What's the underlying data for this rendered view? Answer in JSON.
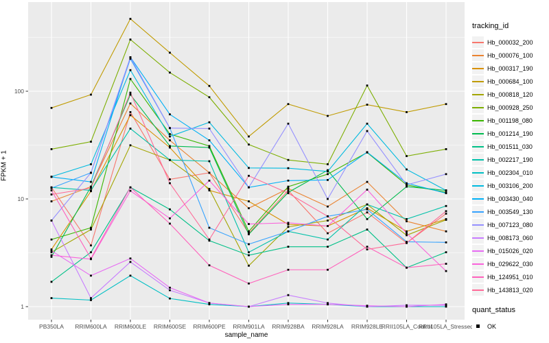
{
  "legend": {
    "tracking_title": "tracking_id",
    "quant_title": "quant_status",
    "quant_value": "OK"
  },
  "colors": {
    "panel_bg": "#EBEBEB",
    "grid_major": "#FFFFFF",
    "grid_minor": "#F7F7F7",
    "tick_mark": "#333333",
    "tick_text": "#4D4D4D",
    "point": "#000000",
    "legend_key_bg": "#F2F2F2"
  },
  "chart_data": {
    "type": "line",
    "title": "",
    "xlabel": "sample_name",
    "ylabel": "FPKM + 1",
    "y_scale": "log10",
    "ylim": [
      1,
      625
    ],
    "y_ticks": [
      1,
      10,
      100
    ],
    "y_minor_ticks": [
      3.162,
      31.62,
      316.2
    ],
    "grid": true,
    "legend_position": "right",
    "point_marker": "black-square",
    "categories": [
      "PB350LA",
      "RRIM600LA",
      "RRIM600LE",
      "RRIM600SE",
      "RRIM600PE",
      "RRIM901LA",
      "RRIM928BA",
      "RRIM928LA",
      "RRIM928LE",
      "RRII105LA_Control",
      "RRII105LA_Stressed"
    ],
    "series": [
      {
        "name": "Hb_000032_200",
        "color": "#F8766D",
        "values": [
          12.8,
          3.7,
          64,
          15.2,
          17.5,
          4.8,
          12.0,
          4.8,
          7.5,
          3.9,
          7.3
        ]
      },
      {
        "name": "Hb_000076_100",
        "color": "#EA8331",
        "values": [
          9.5,
          13.0,
          77,
          35,
          17.5,
          8.2,
          12.5,
          8.5,
          14.4,
          6.2,
          5.0
        ]
      },
      {
        "name": "Hb_000317_190",
        "color": "#D89000",
        "values": [
          3.4,
          11.8,
          60,
          30,
          12.0,
          9.5,
          5.8,
          5.6,
          8.2,
          5.0,
          6.5
        ]
      },
      {
        "name": "Hb_000684_100",
        "color": "#C09B00",
        "values": [
          70,
          93,
          470,
          228,
          112,
          38,
          76,
          59,
          75,
          64,
          76
        ]
      },
      {
        "name": "Hb_000818_120",
        "color": "#A3A500",
        "values": [
          3.2,
          5.2,
          31.5,
          23,
          12.4,
          2.4,
          5.5,
          6.3,
          8.9,
          4.6,
          6.4
        ]
      },
      {
        "name": "Hb_000928_250",
        "color": "#7CAE00",
        "values": [
          29,
          34,
          302,
          149,
          88,
          32,
          23,
          21,
          113,
          25,
          29
        ]
      },
      {
        "name": "Hb_001198_080",
        "color": "#39B600",
        "values": [
          4.2,
          5.4,
          130,
          40,
          31,
          5.0,
          13.0,
          17.0,
          27,
          13.5,
          11.5
        ]
      },
      {
        "name": "Hb_001214_190",
        "color": "#00BB4E",
        "values": [
          2.9,
          13.0,
          93,
          31,
          30,
          4.7,
          11.5,
          18.5,
          6.5,
          13.0,
          12.0
        ]
      },
      {
        "name": "Hb_001511_030",
        "color": "#00C087",
        "values": [
          1.7,
          3.2,
          12.8,
          8.0,
          4.1,
          3.0,
          3.6,
          3.6,
          5.2,
          2.3,
          3.2
        ]
      },
      {
        "name": "Hb_002217_190",
        "color": "#00C1A9",
        "values": [
          12.8,
          12.0,
          45,
          23,
          22.4,
          3.2,
          5.0,
          4.2,
          8.9,
          6.5,
          8.6
        ]
      },
      {
        "name": "Hb_002304_010",
        "color": "#00BFC4",
        "values": [
          1.2,
          1.15,
          1.94,
          1.19,
          1.05,
          1.0,
          1.08,
          1.05,
          1.0,
          1.0,
          1.0
        ]
      },
      {
        "name": "Hb_003106_200",
        "color": "#00BAE0",
        "values": [
          16.1,
          21,
          157,
          38,
          51.5,
          19.4,
          19.3,
          18.0,
          50,
          18.8,
          12.0
        ]
      },
      {
        "name": "Hb_003430_040",
        "color": "#00B0F6",
        "values": [
          16.0,
          14.4,
          207,
          61,
          35,
          12.8,
          14.8,
          15.0,
          27.2,
          14.0,
          11.3
        ]
      },
      {
        "name": "Hb_003549_130",
        "color": "#35A2FF",
        "values": [
          12.6,
          17.5,
          200,
          45.5,
          5.4,
          3.8,
          5.0,
          6.9,
          8.0,
          4.0,
          3.95
        ]
      },
      {
        "name": "Hb_007123_080",
        "color": "#9590FF",
        "values": [
          6.3,
          17.5,
          207,
          45.5,
          45,
          12.8,
          50,
          10.0,
          42.7,
          13.5,
          17.0
        ]
      },
      {
        "name": "Hb_008173_060",
        "color": "#C77CFF",
        "values": [
          6.3,
          1.2,
          2.6,
          1.42,
          1.08,
          1.0,
          1.28,
          1.08,
          1.0,
          1.03,
          1.03
        ]
      },
      {
        "name": "Hb_015026_020",
        "color": "#E76BF3",
        "values": [
          3.3,
          1.94,
          2.8,
          1.5,
          1.08,
          1.0,
          1.05,
          1.05,
          1.02,
          1.0,
          1.05
        ]
      },
      {
        "name": "Hb_029622_030",
        "color": "#FA62DB",
        "values": [
          3.0,
          2.76,
          11.9,
          6.6,
          14.8,
          5.85,
          6.0,
          5.6,
          12.2,
          4.8,
          2.14
        ]
      },
      {
        "name": "Hb_124951_010",
        "color": "#FF62BC",
        "values": [
          12.0,
          2.8,
          12.8,
          5.9,
          2.42,
          1.64,
          2.2,
          2.2,
          3.6,
          2.3,
          2.5
        ]
      },
      {
        "name": "Hb_143813_020",
        "color": "#FF6A98",
        "values": [
          11.0,
          12.6,
          97,
          14.0,
          4.2,
          16.4,
          11.3,
          6.9,
          3.4,
          3.9,
          7.7
        ]
      }
    ]
  }
}
